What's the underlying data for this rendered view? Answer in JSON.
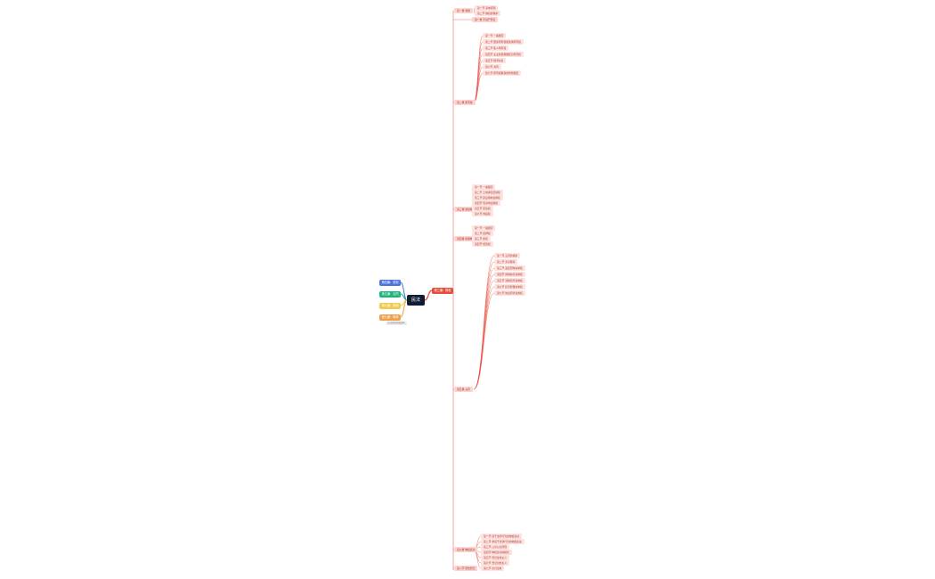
{
  "root": {
    "label": "民法"
  },
  "main_branch": {
    "label": "第三编：物权"
  },
  "side_branches": [
    {
      "label": "第四编：侵权",
      "color": "#4e73df"
    },
    {
      "label": "第五编：合同",
      "color": "#1bb47a"
    },
    {
      "label": "第六编：婚姻",
      "color": "#f2c94c"
    },
    {
      "label": "第七编：继承",
      "color": "#f0a04b"
    }
  ],
  "side_note": {
    "label": "民法典总则及结构"
  },
  "nodes": [
    {
      "label": "第一章 通则"
    },
    {
      "label": "第一节 基本原则"
    },
    {
      "label": "第二节 物权的保护"
    },
    {
      "label": "第一章 不动产登记"
    },
    {
      "label": "第二章 所有权"
    },
    {
      "label": "第一节 一般规定"
    },
    {
      "label": "第二节 国家所有权和集体所有权"
    },
    {
      "label": "第三节 私人所有权"
    },
    {
      "label": "第四节 业主的建筑物区分所有权"
    },
    {
      "label": "第五节 相邻关系"
    },
    {
      "label": "第六节 共有"
    },
    {
      "label": "第七节 所有权取得的特别规定"
    },
    {
      "label": "第三章 用益物权"
    },
    {
      "label": "第一节 一般规定"
    },
    {
      "label": "第二节 土地承包经营权"
    },
    {
      "label": "第三节 建设用地使用权"
    },
    {
      "label": "第四节 宅基地使用权"
    },
    {
      "label": "第五节 居住权"
    },
    {
      "label": "第六节 地役权"
    },
    {
      "label": "第四章 担保物权"
    },
    {
      "label": "第一节 一般规定"
    },
    {
      "label": "第二节 抵押权"
    },
    {
      "label": "第三节 质权"
    },
    {
      "label": "第四节 留置权"
    },
    {
      "label": "第五章 占有"
    },
    {
      "label": "第一节 占有的保护"
    },
    {
      "label": "第二节 善意取得"
    },
    {
      "label": "第三节 返还原物请求权"
    },
    {
      "label": "第四节 排除妨害请求权"
    },
    {
      "label": "第五节 消除危险请求权"
    },
    {
      "label": "第六节 损害赔偿请求权"
    },
    {
      "label": "第七节 恢复原状请求权"
    },
    {
      "label": "第六章 物权变动"
    },
    {
      "label": "第一节 基于法律行为的物权变动"
    },
    {
      "label": "第二节 非基于法律行为的物权变动"
    },
    {
      "label": "第三节 公示公信原则"
    },
    {
      "label": "第四节 物权变动的模式"
    },
    {
      "label": "第五节 登记生效主义"
    },
    {
      "label": "第六节 登记对抗主义"
    },
    {
      "label": "第七节 交付生效"
    },
    {
      "label": "第八节 预告登记"
    }
  ]
}
